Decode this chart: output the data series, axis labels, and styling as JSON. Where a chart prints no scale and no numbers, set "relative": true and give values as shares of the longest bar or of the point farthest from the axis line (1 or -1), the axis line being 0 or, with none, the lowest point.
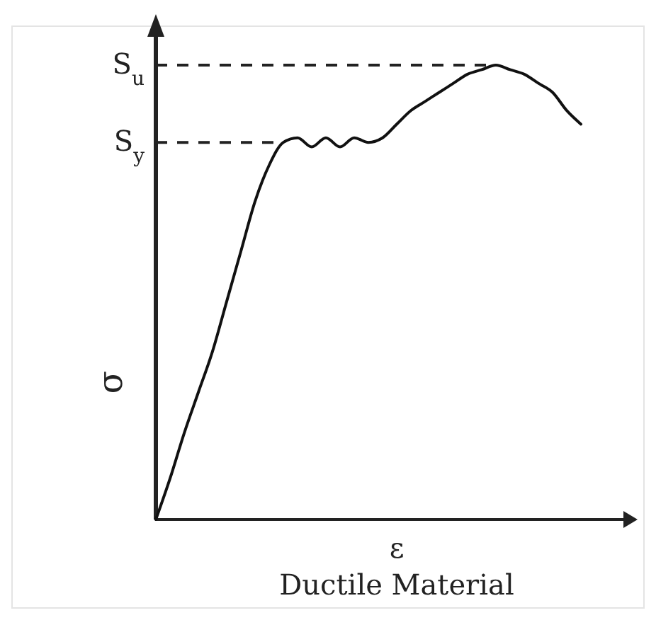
{
  "chart_data": {
    "type": "line",
    "relative": true,
    "xlabel": "ε",
    "ylabel": "σ",
    "annotations": [
      "Ductile Material"
    ],
    "categories": [
      null,
      null,
      null,
      null,
      null,
      null,
      null,
      null,
      null,
      null,
      null,
      null,
      null,
      null,
      null,
      null,
      null,
      null,
      null,
      null,
      null,
      null,
      null,
      null,
      null,
      null,
      null,
      null,
      null,
      null,
      null
    ],
    "series": [
      {
        "color": "#111111",
        "values": [
          0,
          0.09,
          0.19,
          0.28,
          0.37,
          0.48,
          0.59,
          0.7,
          0.78,
          0.83,
          0.84,
          0.82,
          0.84,
          0.82,
          0.84,
          0.83,
          0.84,
          0.87,
          0.9,
          0.92,
          0.94,
          0.96,
          0.98,
          0.99,
          1.0,
          0.99,
          0.98,
          0.96,
          0.94,
          0.9,
          0.87
        ]
      }
    ],
    "ref_lines": [
      {
        "axis": "y",
        "value": 1.0,
        "label": "S$_{u}$",
        "line_style": "dashed"
      },
      {
        "axis": "y",
        "value": 0.83,
        "label": "S$_{y}$",
        "line_style": "dashed"
      }
    ],
    "grid": false,
    "marker": "none",
    "line_style": "solid"
  }
}
